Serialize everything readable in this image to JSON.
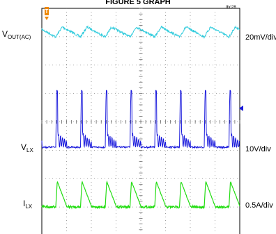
{
  "title": "FIGURE 5 GRAPH",
  "figure_id": "tbc28",
  "chart_data": {
    "type": "line",
    "divisions_x": 8,
    "divisions_y": 8,
    "grid": true,
    "time_per_div": "",
    "switching_cycles_visible": 8,
    "series": [
      {
        "name": "VOUT(AC)",
        "label_main": "V",
        "label_sub": "OUT(AC)",
        "scale": "20mV/div",
        "color": "#33ccdd",
        "waveform": "ripple",
        "ripple_mv_pp": 14
      },
      {
        "name": "VLX",
        "label_main": "V",
        "label_sub": "LX",
        "scale": "10V/div",
        "color": "#1a1adc",
        "waveform": "switch-node",
        "pulse_amplitude_v": 20,
        "ringing_v_pp": 5
      },
      {
        "name": "ILX",
        "label_main": "I",
        "label_sub": "LX",
        "scale": "0.5A/div",
        "color": "#22dd11",
        "waveform": "sawtooth",
        "ripple_a_pp": 0.45
      }
    ]
  }
}
